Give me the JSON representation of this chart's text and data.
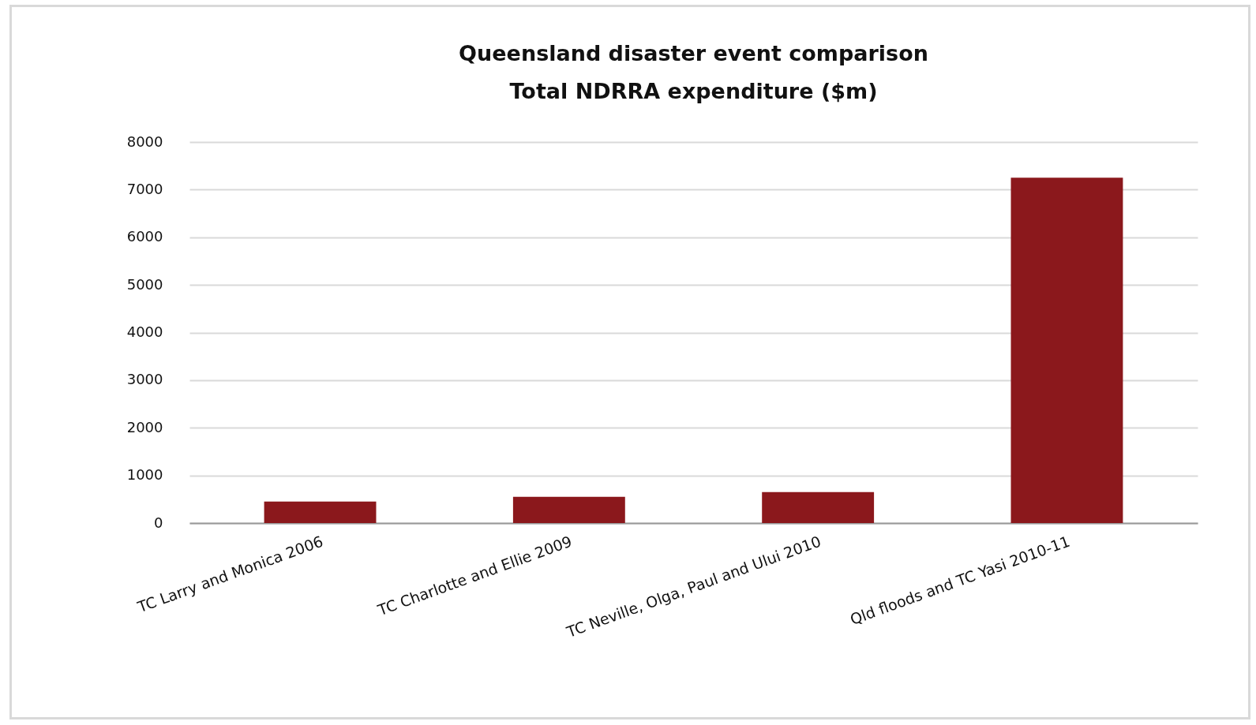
{
  "chart_data": {
    "type": "bar",
    "title": [
      "Queensland disaster event comparison",
      "Total NDRRA expenditure ($m)"
    ],
    "categories": [
      "TC Larry and Monica 2006",
      "TC Charlotte and Ellie 2009",
      "TC Neville, Olga, Paul and Ului 2010",
      "Qld floods and TC Yasi 2010-11"
    ],
    "values": [
      450,
      550,
      650,
      7250
    ],
    "color": "#8b181c",
    "ylim": [
      0,
      8000
    ],
    "yticks": [
      0,
      1000,
      2000,
      3000,
      4000,
      5000,
      6000,
      7000,
      8000
    ],
    "grid": "y"
  }
}
